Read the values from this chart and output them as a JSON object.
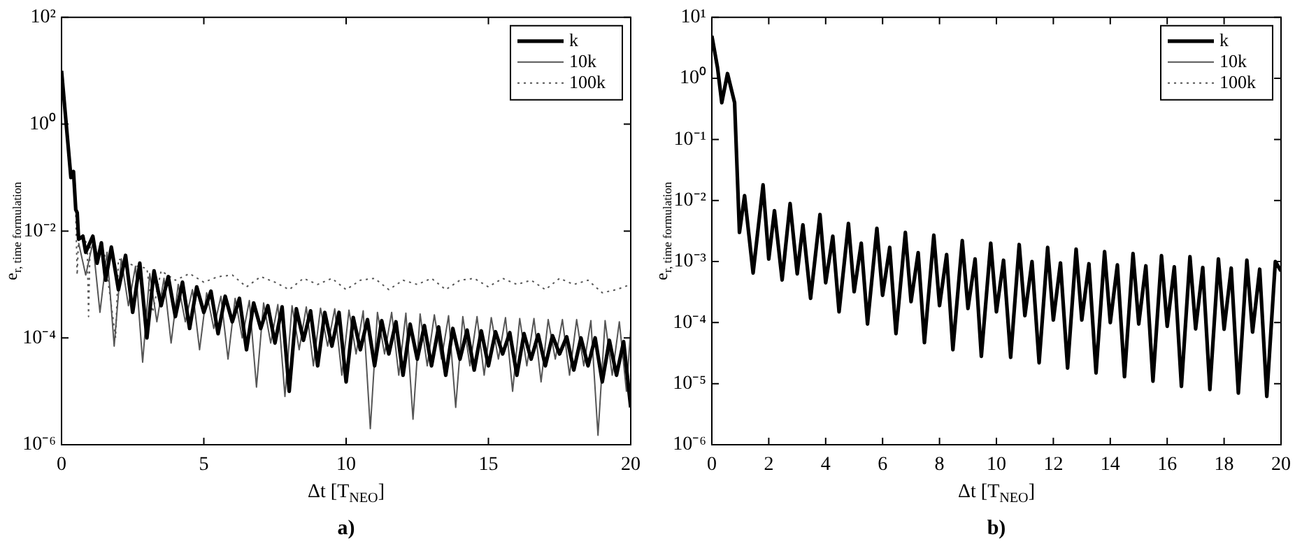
{
  "chart_data": [
    {
      "type": "line",
      "xlabel": "Δt [T$_{NEO}$]",
      "ylabel": "e$_{r, time formulation}$",
      "annotations": [
        "a)"
      ],
      "log": "y",
      "grid": false,
      "legend": "top right",
      "xlim": [
        0,
        20
      ],
      "xticks": [
        0,
        5,
        10,
        15,
        20
      ],
      "ylim": [
        1e-06,
        100
      ],
      "yticks": [
        {
          "value": 1e-06,
          "label": "10⁻⁶"
        },
        {
          "value": 0.0001,
          "label": "10⁻⁴"
        },
        {
          "value": 0.01,
          "label": "10⁻²"
        },
        {
          "value": 1,
          "label": "10⁰"
        },
        {
          "value": 100,
          "label": "10²"
        }
      ],
      "series": [
        {
          "name": "k",
          "color": "#000000",
          "line_style": "solid",
          "x": [
            0,
            0.33,
            0.42,
            0.5,
            0.55,
            0.6,
            0.75,
            0.85,
            1.1,
            1.25,
            1.4,
            1.55,
            1.75,
            2.0,
            2.25,
            2.5,
            2.75,
            3.0,
            3.25,
            3.5,
            3.75,
            4.0,
            4.25,
            4.5,
            4.75,
            5.0,
            5.25,
            5.5,
            5.75,
            6.0,
            6.25,
            6.5,
            6.75,
            7.0,
            7.25,
            7.5,
            7.75,
            8.0,
            8.25,
            8.5,
            8.75,
            9.0,
            9.25,
            9.5,
            9.75,
            10.0,
            10.25,
            10.5,
            10.75,
            11.0,
            11.25,
            11.5,
            11.75,
            12.0,
            12.25,
            12.5,
            12.75,
            13.0,
            13.25,
            13.5,
            13.75,
            14.0,
            14.25,
            14.5,
            14.75,
            15.0,
            15.25,
            15.5,
            15.75,
            16.0,
            16.25,
            16.5,
            16.75,
            17.0,
            17.25,
            17.5,
            17.75,
            18.0,
            18.25,
            18.5,
            18.75,
            19.0,
            19.25,
            19.5,
            19.75,
            20.0
          ],
          "values": [
            10,
            0.1,
            0.13,
            0.025,
            0.022,
            0.007,
            0.008,
            0.004,
            0.008,
            0.0025,
            0.006,
            0.0012,
            0.005,
            0.0008,
            0.0035,
            0.0003,
            0.0025,
            0.0001,
            0.0018,
            0.0004,
            0.0014,
            0.00025,
            0.0011,
            0.00015,
            0.0009,
            0.0003,
            0.00075,
            0.00012,
            0.0006,
            0.0002,
            0.00055,
            6e-05,
            0.00045,
            0.00015,
            0.0004,
            8e-05,
            0.00038,
            1e-05,
            0.00035,
            9e-05,
            0.00032,
            3e-05,
            0.0003,
            7e-05,
            0.0003,
            1.5e-05,
            0.00024,
            6e-05,
            0.00022,
            3e-05,
            0.00021,
            5e-05,
            0.0002,
            2e-05,
            0.00018,
            4e-05,
            0.00017,
            3e-05,
            0.00016,
            2e-05,
            0.00015,
            4e-05,
            0.00014,
            2.5e-05,
            0.000135,
            3e-05,
            0.00013,
            5e-05,
            0.000125,
            2e-05,
            0.00012,
            4e-05,
            0.000115,
            3e-05,
            0.00011,
            5e-05,
            0.000105,
            2.5e-05,
            0.0001,
            3e-05,
            0.0001,
            1.5e-05,
            9e-05,
            2e-05,
            8.5e-05,
            5e-06
          ]
        },
        {
          "name": "10k",
          "color": "#555555",
          "line_style": "solid",
          "x": [
            0.6,
            0.85,
            1.1,
            1.35,
            1.6,
            1.85,
            2.1,
            2.35,
            2.6,
            2.85,
            3.1,
            3.35,
            3.6,
            3.85,
            4.1,
            4.35,
            4.6,
            4.85,
            5.1,
            5.35,
            5.6,
            5.85,
            6.1,
            6.35,
            6.6,
            6.85,
            7.1,
            7.35,
            7.6,
            7.85,
            8.1,
            8.35,
            8.6,
            8.85,
            9.1,
            9.35,
            9.6,
            9.85,
            10.1,
            10.35,
            10.6,
            10.85,
            11.1,
            11.35,
            11.6,
            11.85,
            12.1,
            12.35,
            12.6,
            12.85,
            13.1,
            13.35,
            13.6,
            13.85,
            14.1,
            14.35,
            14.6,
            14.85,
            15.1,
            15.35,
            15.6,
            15.85,
            16.1,
            16.35,
            16.6,
            16.85,
            17.1,
            17.35,
            17.6,
            17.85,
            18.1,
            18.35,
            18.6,
            18.85,
            19.1,
            19.35,
            19.6,
            19.85,
            20.0
          ],
          "values": [
            0.006,
            0.0015,
            0.006,
            0.0003,
            0.004,
            7e-05,
            0.003,
            0.0004,
            0.0022,
            3.5e-05,
            0.0016,
            0.0002,
            0.0013,
            8e-05,
            0.001,
            0.0002,
            0.0008,
            6e-05,
            0.0007,
            0.00015,
            0.0006,
            4e-05,
            0.00055,
            0.0001,
            0.0005,
            1.2e-05,
            0.00045,
            8e-05,
            0.00042,
            8e-06,
            0.0004,
            6e-05,
            0.00038,
            3e-05,
            0.00036,
            7e-05,
            0.00035,
            2e-05,
            0.00033,
            5e-05,
            0.00032,
            2e-06,
            0.0003,
            5e-05,
            0.0003,
            2e-05,
            0.00029,
            3e-06,
            0.00028,
            3e-05,
            0.00027,
            4e-05,
            0.00026,
            5e-06,
            0.00025,
            3e-05,
            0.00025,
            2e-05,
            0.00024,
            4e-05,
            0.00024,
            1e-05,
            0.00023,
            3e-05,
            0.00023,
            1.5e-05,
            0.00022,
            4e-05,
            0.00022,
            2e-05,
            0.00022,
            3e-05,
            0.00021,
            1.5e-06,
            0.00021,
            2e-05,
            0.0002,
            1e-05,
            0.00015
          ]
        },
        {
          "name": "100k",
          "color": "#555555",
          "line_style": "dotted",
          "x": [
            0.5,
            0.55,
            0.6,
            0.9,
            0.95,
            1.0,
            1.5,
            1.9,
            2.0,
            2.5,
            3.0,
            3.2,
            3.5,
            4.0,
            4.5,
            5.0,
            5.5,
            6.0,
            6.5,
            7.0,
            7.5,
            8.0,
            8.5,
            9.0,
            9.5,
            10.0,
            10.5,
            11.0,
            11.5,
            12.0,
            12.5,
            13.0,
            13.5,
            14.0,
            14.5,
            15.0,
            15.5,
            16.0,
            16.5,
            17.0,
            17.5,
            18.0,
            18.5,
            19.0,
            19.5,
            20.0
          ],
          "values": [
            0.02,
            0.0015,
            0.008,
            0.006,
            0.00025,
            0.005,
            0.004,
            0.0001,
            0.003,
            0.0023,
            0.002,
            0.0003,
            0.0018,
            0.0012,
            0.0016,
            0.0011,
            0.0014,
            0.0015,
            0.0009,
            0.0014,
            0.0011,
            0.0008,
            0.0013,
            0.001,
            0.0013,
            0.0008,
            0.0012,
            0.0013,
            0.0008,
            0.0012,
            0.001,
            0.0013,
            0.0008,
            0.0012,
            0.0013,
            0.0009,
            0.0013,
            0.001,
            0.0012,
            0.0008,
            0.0013,
            0.001,
            0.0012,
            0.0007,
            0.0008,
            0.001
          ]
        }
      ]
    },
    {
      "type": "line",
      "xlabel": "Δt [T$_{NEO}$]",
      "ylabel": "e$_{r, time formulation}$",
      "annotations": [
        "b)"
      ],
      "log": "y",
      "grid": false,
      "legend": "top right",
      "xlim": [
        0,
        20
      ],
      "xticks": [
        0,
        2,
        4,
        6,
        8,
        10,
        12,
        14,
        16,
        18,
        20
      ],
      "ylim": [
        1e-06,
        10
      ],
      "yticks": [
        {
          "value": 1e-06,
          "label": "10⁻⁶"
        },
        {
          "value": 1e-05,
          "label": "10⁻⁵"
        },
        {
          "value": 0.0001,
          "label": "10⁻⁴"
        },
        {
          "value": 0.001,
          "label": "10⁻³"
        },
        {
          "value": 0.01,
          "label": "10⁻²"
        },
        {
          "value": 0.1,
          "label": "10⁻¹"
        },
        {
          "value": 1,
          "label": "10⁰"
        },
        {
          "value": 10,
          "label": "10¹"
        }
      ],
      "series": [
        {
          "name": "k",
          "color": "#000000",
          "line_style": "solid",
          "x": [
            0,
            0.2,
            0.35,
            0.55,
            0.8,
            0.97,
            1.15,
            1.45,
            1.8,
            2.0,
            2.2,
            2.47,
            2.75,
            3.0,
            3.2,
            3.47,
            3.8,
            4.0,
            4.25,
            4.47,
            4.8,
            5.0,
            5.25,
            5.47,
            5.8,
            6.0,
            6.25,
            6.47,
            6.8,
            7.0,
            7.25,
            7.47,
            7.8,
            8.0,
            8.25,
            8.47,
            8.8,
            9.0,
            9.25,
            9.47,
            9.8,
            10.0,
            10.25,
            10.5,
            10.8,
            11.0,
            11.25,
            11.5,
            11.8,
            12.0,
            12.25,
            12.5,
            12.8,
            13.0,
            13.25,
            13.5,
            13.8,
            14.0,
            14.25,
            14.5,
            14.8,
            15.0,
            15.25,
            15.5,
            15.8,
            16.0,
            16.25,
            16.5,
            16.8,
            17.0,
            17.25,
            17.5,
            17.8,
            18.0,
            18.25,
            18.5,
            18.8,
            19.0,
            19.25,
            19.5,
            19.8,
            20.0
          ],
          "values": [
            5,
            1.5,
            0.4,
            1.2,
            0.4,
            0.003,
            0.012,
            0.00065,
            0.018,
            0.0011,
            0.0068,
            0.0005,
            0.0089,
            0.00063,
            0.004,
            0.00025,
            0.0059,
            0.00045,
            0.0026,
            0.00015,
            0.0042,
            0.00032,
            0.002,
            9.5e-05,
            0.0035,
            0.00028,
            0.0017,
            6.6e-05,
            0.003,
            0.00022,
            0.0014,
            4.7e-05,
            0.0027,
            0.00019,
            0.0013,
            3.6e-05,
            0.0022,
            0.00017,
            0.0011,
            2.8e-05,
            0.002,
            0.00015,
            0.00105,
            2.7e-05,
            0.0019,
            0.00013,
            0.001,
            2.2e-05,
            0.0017,
            0.00011,
            0.00095,
            1.8e-05,
            0.0016,
            0.00011,
            0.00092,
            1.5e-05,
            0.00145,
            0.0001,
            0.00088,
            1.3e-05,
            0.00135,
            9.5e-05,
            0.00085,
            1.1e-05,
            0.00125,
            8.7e-05,
            0.00082,
            9e-06,
            0.0012,
            7.9e-05,
            0.0008,
            8e-06,
            0.0011,
            7.8e-05,
            0.00078,
            7e-06,
            0.00105,
            7e-05,
            0.00075,
            6.2e-06,
            0.001,
            0.0007
          ]
        },
        {
          "name": "10k",
          "color": "#555555",
          "line_style": "solid"
        },
        {
          "name": "100k",
          "color": "#555555",
          "line_style": "dotted"
        }
      ]
    }
  ]
}
